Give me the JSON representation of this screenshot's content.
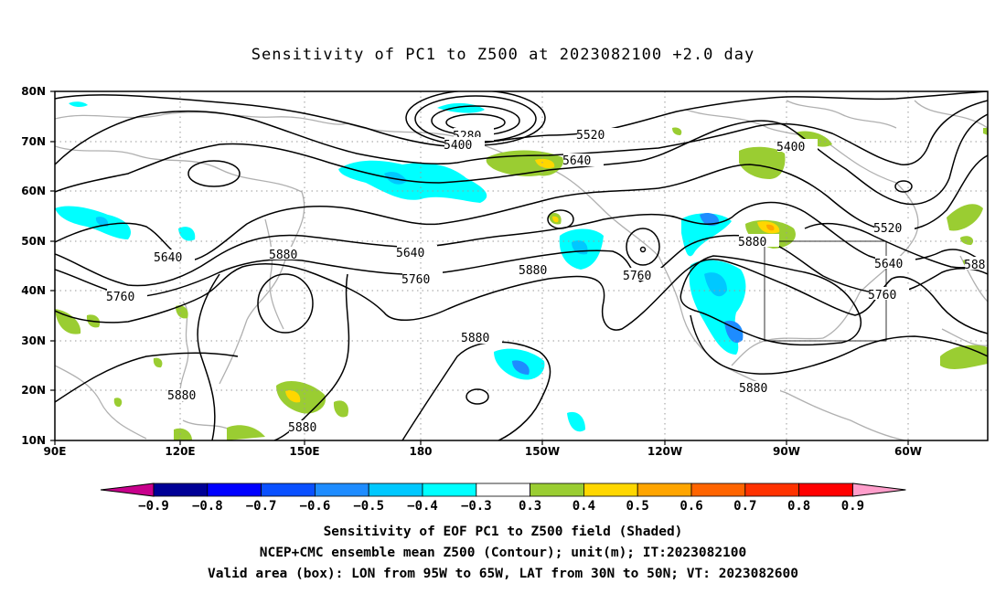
{
  "title": "Sensitivity of PC1 to Z500 at 2023082100 +2.0 day",
  "lat_labels": [
    "80N",
    "70N",
    "60N",
    "50N",
    "40N",
    "30N",
    "20N",
    "10N"
  ],
  "lon_labels": [
    "90E",
    "120E",
    "150E",
    "180",
    "150W",
    "120W",
    "90W",
    "60W"
  ],
  "contour_labels": [
    {
      "text": "5280",
      "id": "c5280"
    },
    {
      "text": "5400",
      "id": "c5400a"
    },
    {
      "text": "5520",
      "id": "c5520a"
    },
    {
      "text": "5640",
      "id": "c5640a"
    },
    {
      "text": "5400",
      "id": "c5400b"
    },
    {
      "text": "5520",
      "id": "c5520b"
    },
    {
      "text": "5640",
      "id": "c5640b"
    },
    {
      "text": "5640",
      "id": "c5640c"
    },
    {
      "text": "5880",
      "id": "c5880a"
    },
    {
      "text": "5760",
      "id": "c5760a"
    },
    {
      "text": "5760",
      "id": "c5760b"
    },
    {
      "text": "5880",
      "id": "c5880b"
    },
    {
      "text": "5760",
      "id": "c5760c"
    },
    {
      "text": "5880",
      "id": "c5880c"
    },
    {
      "text": "5760",
      "id": "c5760d"
    },
    {
      "text": "588",
      "id": "c588"
    },
    {
      "text": "5880",
      "id": "c5880d"
    },
    {
      "text": "5880",
      "id": "c5880e"
    },
    {
      "text": "5880",
      "id": "c5880f"
    },
    {
      "text": "5880",
      "id": "c5880g"
    }
  ],
  "colorbar": {
    "labels": [
      "-0.9",
      "-0.8",
      "-0.7",
      "-0.6",
      "-0.5",
      "-0.4",
      "-0.3",
      "0.3",
      "0.4",
      "0.5",
      "0.6",
      "0.7",
      "0.8",
      "0.9"
    ],
    "colors": [
      "#c8008c",
      "#000096",
      "#0000ff",
      "#0a50ff",
      "#1e8cff",
      "#00c8ff",
      "#00ffff",
      "#ffffff",
      "#9acd32",
      "#ffd700",
      "#ffa500",
      "#ff6400",
      "#ff3200",
      "#ff0000",
      "#ff9ecb"
    ]
  },
  "footer": {
    "line1": "Sensitivity of EOF PC1 to Z500 field (Shaded)",
    "line2": "NCEP+CMC ensemble mean Z500 (Contour); unit(m); IT:2023082100",
    "line3": "Valid area (box): LON from 95W to 65W, LAT from 30N to 50N; VT: 2023082600"
  }
}
